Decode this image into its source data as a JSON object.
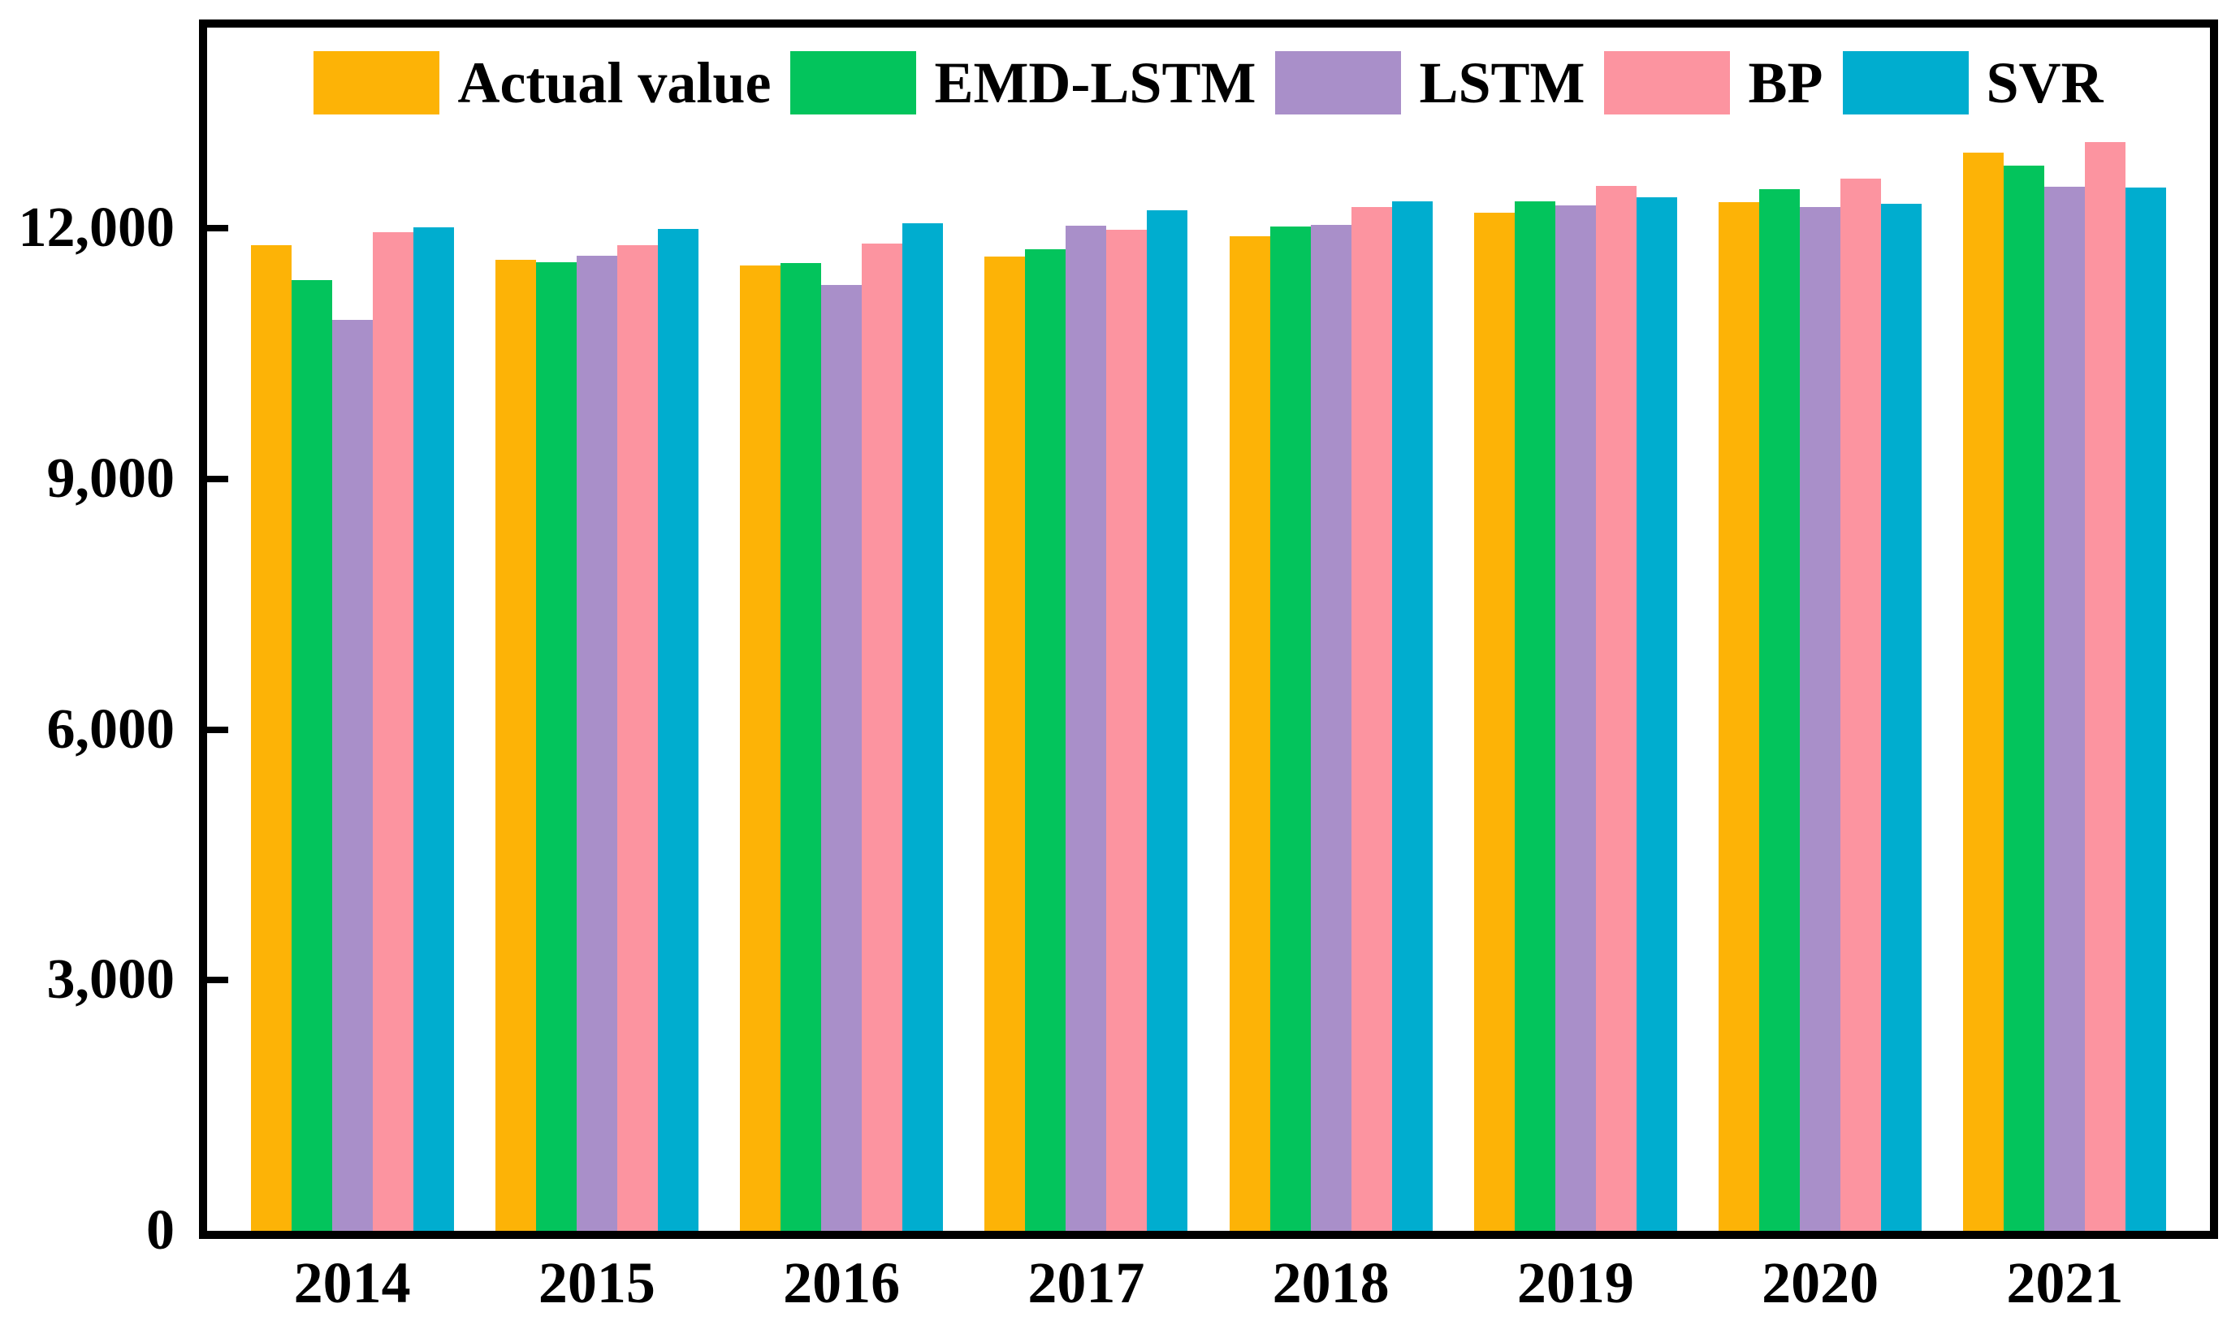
{
  "chart_data": {
    "type": "bar",
    "title": "",
    "xlabel": "",
    "ylabel": "",
    "categories": [
      "2014",
      "2015",
      "2016",
      "2017",
      "2018",
      "2019",
      "2020",
      "2021"
    ],
    "series": [
      {
        "name": "Actual value",
        "color": "#FDB306",
        "values": [
          11800,
          11620,
          11550,
          11660,
          11900,
          12180,
          12310,
          12900
        ]
      },
      {
        "name": "EMD-LSTM",
        "color": "#03C45C",
        "values": [
          11380,
          11590,
          11580,
          11750,
          12020,
          12320,
          12470,
          12750
        ]
      },
      {
        "name": "LSTM",
        "color": "#A98FC9",
        "values": [
          10900,
          11670,
          11320,
          12030,
          12040,
          12270,
          12250,
          12500
        ]
      },
      {
        "name": "BP",
        "color": "#FC94A0",
        "values": [
          11950,
          11800,
          11820,
          11980,
          12250,
          12510,
          12590,
          13030
        ]
      },
      {
        "name": "SVR",
        "color": "#00ADCF",
        "values": [
          12010,
          11990,
          12060,
          12210,
          12320,
          12370,
          12290,
          12490
        ]
      }
    ],
    "yticks": [
      {
        "value": 0,
        "label": "0"
      },
      {
        "value": 3000,
        "label": "3,000"
      },
      {
        "value": 6000,
        "label": "6,000"
      },
      {
        "value": 9000,
        "label": "9,000"
      },
      {
        "value": 12000,
        "label": "12,000"
      }
    ],
    "ylim": [
      0,
      14400
    ],
    "grid": false,
    "legend_position": "top-inside",
    "frame_color": "#000000",
    "background_color": "#FFFFFF"
  }
}
